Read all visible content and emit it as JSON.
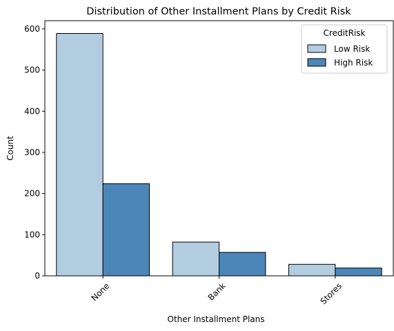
{
  "chart_data": {
    "type": "bar",
    "title": "Distribution of Other Installment Plans by Credit Risk",
    "xlabel": "Other Installment Plans",
    "ylabel": "Count",
    "categories": [
      "None",
      "Bank",
      "Stores"
    ],
    "series": [
      {
        "name": "Low Risk",
        "values": [
          589,
          82,
          28
        ],
        "color": "#b3cde0"
      },
      {
        "name": "High Risk",
        "values": [
          224,
          57,
          19
        ],
        "color": "#4a86b8"
      }
    ],
    "ylim": [
      0,
      620
    ],
    "yticks": [
      0,
      100,
      200,
      300,
      400,
      500,
      600
    ],
    "grid": false,
    "legend": {
      "title": "CreditRisk",
      "placement": "top-right"
    },
    "bar_edge_color": "#000000"
  }
}
